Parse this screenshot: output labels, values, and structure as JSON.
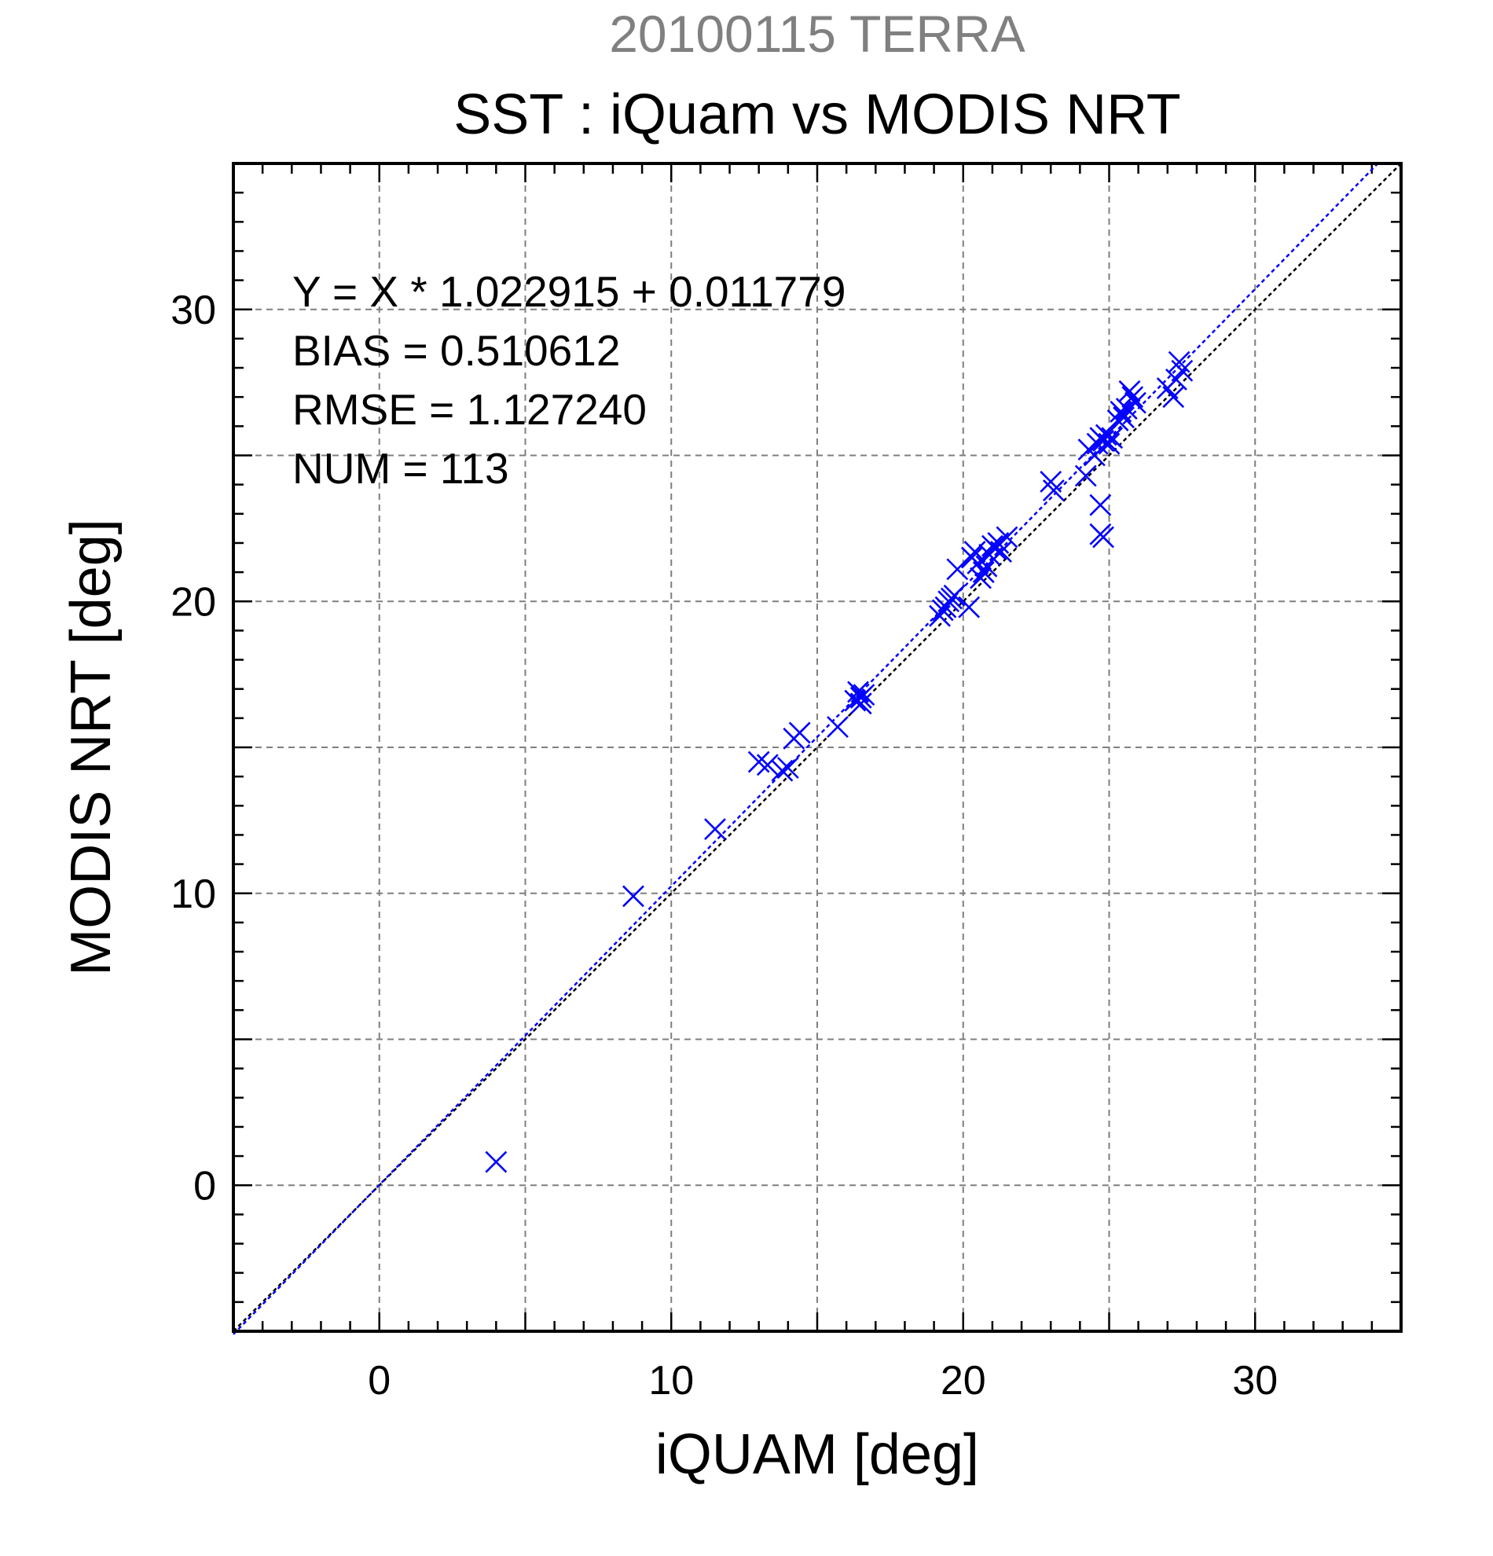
{
  "chart_data": {
    "type": "scatter",
    "supertitle": "20100115 TERRA",
    "title": "SST : iQuam vs MODIS NRT",
    "xlabel": "iQUAM [deg]",
    "ylabel": "MODIS NRT [deg]",
    "xlim": [
      -5,
      35
    ],
    "ylim": [
      -5,
      35
    ],
    "x_ticks": [
      0,
      10,
      20,
      30
    ],
    "y_ticks": [
      0,
      10,
      20,
      30
    ],
    "x_tick_labels": [
      "0",
      "10",
      "20",
      "30"
    ],
    "y_tick_labels": [
      "0",
      "10",
      "20",
      "30"
    ],
    "grid": true,
    "stats": [
      "Y = X * 1.022915 + 0.011779",
      "BIAS = 0.510612",
      "RMSE = 1.127240",
      "NUM = 113"
    ],
    "fit": {
      "slope": 1.022915,
      "intercept": 0.011779,
      "color": "#0000ff"
    },
    "identity_line": {
      "color": "#000000"
    },
    "marker": {
      "shape": "x",
      "color": "#0000ff"
    },
    "points": [
      [
        4.0,
        0.8
      ],
      [
        8.7,
        9.9
      ],
      [
        11.5,
        12.2
      ],
      [
        13.0,
        14.5
      ],
      [
        13.3,
        14.4
      ],
      [
        13.8,
        14.2
      ],
      [
        14.0,
        14.3
      ],
      [
        14.2,
        15.3
      ],
      [
        14.4,
        15.5
      ],
      [
        15.7,
        15.7
      ],
      [
        16.3,
        16.6
      ],
      [
        16.4,
        16.9
      ],
      [
        16.5,
        16.7
      ],
      [
        16.6,
        16.8
      ],
      [
        16.5,
        16.5
      ],
      [
        19.2,
        19.5
      ],
      [
        19.3,
        19.7
      ],
      [
        19.4,
        19.8
      ],
      [
        19.5,
        20.0
      ],
      [
        19.6,
        20.1
      ],
      [
        19.7,
        20.2
      ],
      [
        19.8,
        21.1
      ],
      [
        20.2,
        19.8
      ],
      [
        20.3,
        21.5
      ],
      [
        20.4,
        21.7
      ],
      [
        20.5,
        21.3
      ],
      [
        20.6,
        20.8
      ],
      [
        20.7,
        21.0
      ],
      [
        20.8,
        21.2
      ],
      [
        20.9,
        21.6
      ],
      [
        21.0,
        21.9
      ],
      [
        21.1,
        21.8
      ],
      [
        21.2,
        22.0
      ],
      [
        21.3,
        21.7
      ],
      [
        21.5,
        22.2
      ],
      [
        23.0,
        24.1
      ],
      [
        23.1,
        23.8
      ],
      [
        24.2,
        24.3
      ],
      [
        24.3,
        25.2
      ],
      [
        24.5,
        25.0
      ],
      [
        24.6,
        25.4
      ],
      [
        24.7,
        25.6
      ],
      [
        24.8,
        25.5
      ],
      [
        24.9,
        25.7
      ],
      [
        24.7,
        23.3
      ],
      [
        24.7,
        22.3
      ],
      [
        24.8,
        22.2
      ],
      [
        25.0,
        25.4
      ],
      [
        25.1,
        25.6
      ],
      [
        25.3,
        26.2
      ],
      [
        25.4,
        26.5
      ],
      [
        25.5,
        26.3
      ],
      [
        25.6,
        26.6
      ],
      [
        25.7,
        27.2
      ],
      [
        25.8,
        27.0
      ],
      [
        25.9,
        26.8
      ],
      [
        27.0,
        27.3
      ],
      [
        27.2,
        27.0
      ],
      [
        27.3,
        27.6
      ],
      [
        27.4,
        28.2
      ],
      [
        27.5,
        27.9
      ]
    ]
  }
}
